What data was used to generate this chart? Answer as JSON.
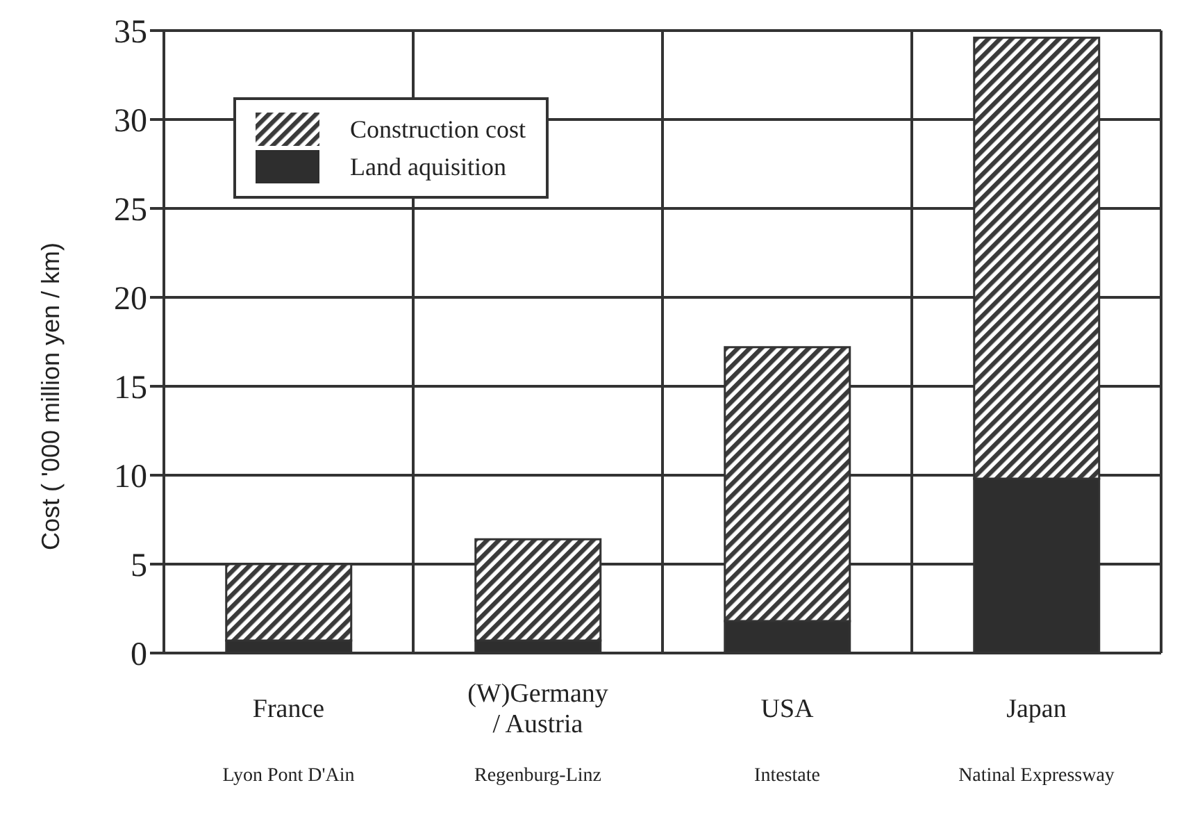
{
  "chart_data": {
    "type": "bar",
    "stacked": true,
    "ylabel": "Cost ( '000 million yen / km)",
    "categories": [
      "France",
      "(W)Germany\n/ Austria",
      "USA",
      "Japan"
    ],
    "annotations": [
      "Lyon Pont D'Ain",
      "Regenburg-Linz",
      "Intestate",
      "Natinal Expressway"
    ],
    "series": [
      {
        "name": "Land aquisition",
        "color": "#2e2e2e",
        "values": [
          0.7,
          0.7,
          1.8,
          9.8
        ]
      },
      {
        "name": "Construction cost",
        "color": "#3a3a3a",
        "values": [
          4.3,
          5.7,
          15.4,
          24.8
        ]
      }
    ],
    "ylim": [
      0,
      35
    ],
    "yticks": [
      0,
      5,
      10,
      15,
      20,
      25,
      30,
      35
    ],
    "grid": true,
    "legend": "top left"
  }
}
